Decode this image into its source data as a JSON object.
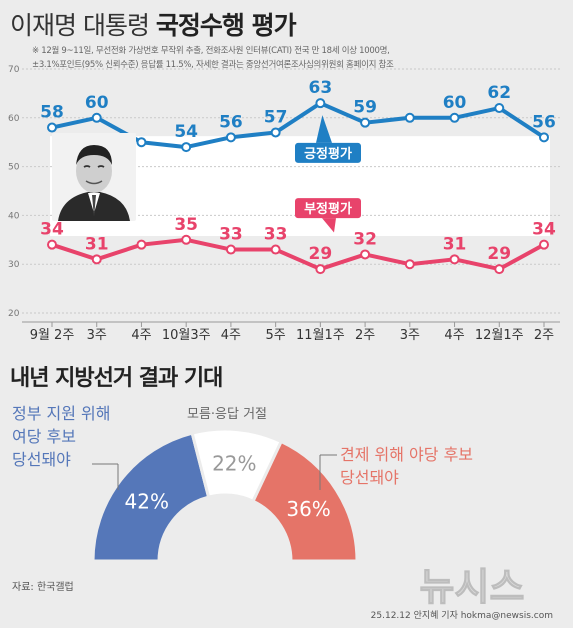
{
  "header": {
    "title_light": "이재명 대통령",
    "title_bold": "국정수행 평가",
    "note_line1": "※ 12월 9~11일, 무선전화 가상번호 무작위 추출, 전화조사원 인터뷰(CATI) 전국 만 18세 이상 1000명,",
    "note_line2": "±3.1%포인트(95% 신뢰수준) 응답률 11.5%, 자세한 결과는 중앙선거여론조사심의위원회 홈페이지 참조"
  },
  "chart_data": [
    {
      "type": "line",
      "categories": [
        "9월 2주",
        "3주",
        "4주",
        "10월3주",
        "4주",
        "5주",
        "11월1주",
        "2주",
        "3주",
        "4주",
        "12월1주",
        "2주"
      ],
      "ylim": [
        20,
        70
      ],
      "yticks": [
        20,
        30,
        40,
        50,
        60,
        70
      ],
      "series": [
        {
          "name": "긍정평가",
          "color": "#1f7fc4",
          "values": [
            58,
            60,
            55,
            54,
            56,
            57,
            63,
            59,
            60,
            60,
            62,
            56
          ],
          "labels": [
            "58",
            "60",
            "",
            "54",
            "56",
            "57",
            "63",
            "59",
            "",
            "60",
            "62",
            "56"
          ]
        },
        {
          "name": "부정평가",
          "color": "#e8436b",
          "values": [
            34,
            31,
            34,
            35,
            33,
            33,
            29,
            32,
            30,
            31,
            29,
            34
          ],
          "labels": [
            "34",
            "31",
            "",
            "35",
            "33",
            "33",
            "29",
            "32",
            "",
            "31",
            "29",
            "34"
          ]
        }
      ]
    },
    {
      "type": "pie",
      "title": "내년 지방선거 결과 기대",
      "slices": [
        {
          "label": "정부 지원 위해\n여당 후보\n당선돼야",
          "value": 42,
          "display": "42%",
          "color": "#5577b9"
        },
        {
          "label": "모름·응답 거절",
          "value": 22,
          "display": "22%",
          "color": "#ffffff"
        },
        {
          "label": "견제 위해 야당 후보\n당선돼야",
          "value": 36,
          "display": "36%",
          "color": "#e57468"
        }
      ]
    }
  ],
  "footer": {
    "source": "자료: 한국갤럽",
    "credit": "25.12.12 안지혜 기자 hokma@newsis.com",
    "logo_text": "뉴시스"
  }
}
